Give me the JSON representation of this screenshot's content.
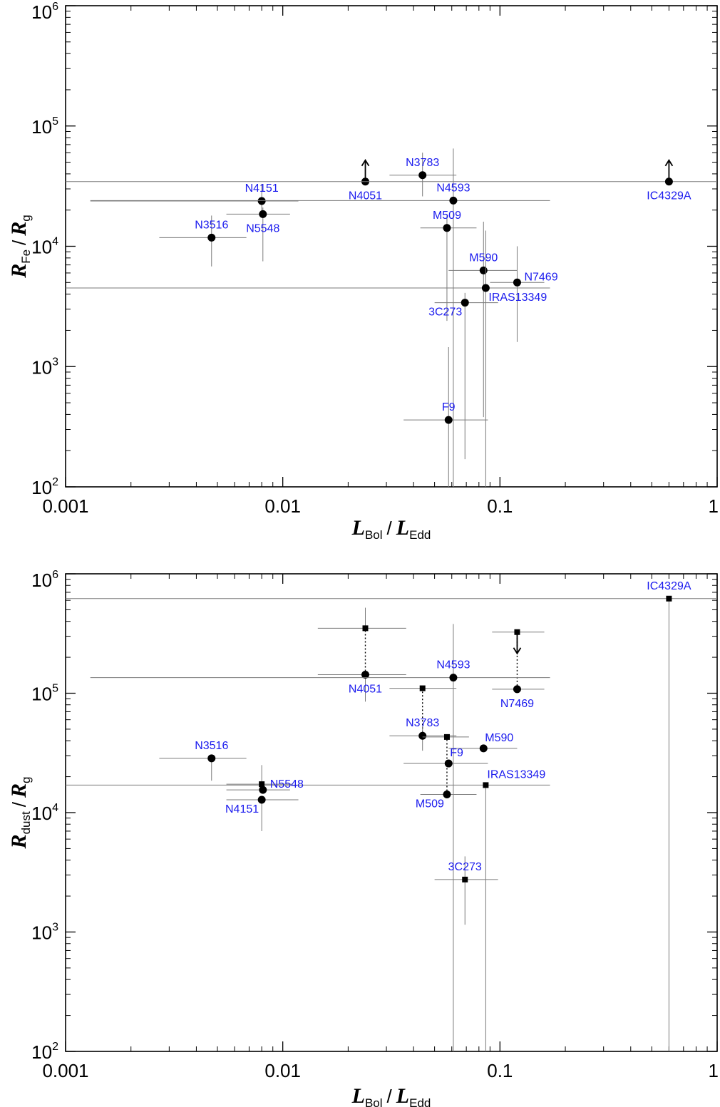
{
  "colors": {
    "label": "#1a1aee",
    "errorbar": "#7a7a7a",
    "axis": "#000000"
  },
  "chart_data": [
    {
      "type": "scatter",
      "panel": "top",
      "xscale": "log",
      "yscale": "log",
      "xlim": [
        0.001,
        1
      ],
      "ylim": [
        100,
        1000000
      ],
      "xlabel": {
        "main": "L",
        "sub": "Bol",
        "slash": "/",
        "main2": "L",
        "sub2": "Edd"
      },
      "ylabel": {
        "main": "R",
        "sub": "Fe",
        "slash": "/",
        "main2": "R",
        "sub2": "g"
      },
      "xticks": [
        {
          "value": 0.001,
          "label": "0.001"
        },
        {
          "value": 0.01,
          "label": "0.01"
        },
        {
          "value": 0.1,
          "label": "0.1"
        },
        {
          "value": 1,
          "label": "1"
        }
      ],
      "yticks": [
        {
          "value": 100,
          "base": "10",
          "exp": "2"
        },
        {
          "value": 1000,
          "base": "10",
          "exp": "3"
        },
        {
          "value": 10000,
          "base": "10",
          "exp": "4"
        },
        {
          "value": 100000,
          "base": "10",
          "exp": "5"
        },
        {
          "value": 1000000,
          "base": "10",
          "exp": "6"
        }
      ],
      "points": [
        {
          "label": "N3516",
          "x": 0.0047,
          "y": 11800,
          "xerr": [
            0.0027,
            0.0068
          ],
          "yerr": [
            6800,
            18000
          ],
          "marker": "circle",
          "lpos": "above"
        },
        {
          "label": "N4151",
          "x": 0.008,
          "y": 23800,
          "xerr": [
            0.0013,
            0.0118
          ],
          "yerr": [
            19000,
            33000
          ],
          "marker": "circle",
          "lpos": "above"
        },
        {
          "label": "N5548",
          "x": 0.0081,
          "y": 18500,
          "xerr": [
            0.0055,
            0.0108
          ],
          "yerr": [
            7500,
            21000
          ],
          "marker": "circle",
          "lpos": "below"
        },
        {
          "label": "N4051",
          "x": 0.024,
          "y": 34500,
          "xerr": [
            0.024,
            0.024
          ],
          "yerr": [
            34500,
            34500
          ],
          "marker": "circle",
          "limit": "lower",
          "lpos": "below"
        },
        {
          "label": "N3783",
          "x": 0.044,
          "y": 39000,
          "xerr": [
            0.031,
            0.063
          ],
          "yerr": [
            26000,
            60000
          ],
          "marker": "circle",
          "lpos": "above"
        },
        {
          "label": "N4593",
          "x": 0.061,
          "y": 24000,
          "xerr": [
            0.0013,
            0.17
          ],
          "yerr": [
            100,
            65000
          ],
          "marker": "circle",
          "lpos": "above"
        },
        {
          "label": "M509",
          "x": 0.057,
          "y": 14200,
          "xerr": [
            0.043,
            0.078
          ],
          "yerr": [
            2400,
            18000
          ],
          "marker": "circle",
          "lpos": "above"
        },
        {
          "label": "M590",
          "x": 0.084,
          "y": 6300,
          "xerr": [
            0.058,
            0.12
          ],
          "yerr": [
            380,
            16000
          ],
          "marker": "circle",
          "lpos": "above"
        },
        {
          "label": "N7469",
          "x": 0.12,
          "y": 5000,
          "xerr": [
            0.09,
            0.16
          ],
          "yerr": [
            1600,
            10000
          ],
          "marker": "circle",
          "lpos": "right"
        },
        {
          "label": "IRAS13349",
          "x": 0.086,
          "y": 4500,
          "xerr": [
            0.001,
            0.17
          ],
          "yerr": [
            100,
            13500
          ],
          "marker": "circle",
          "lpos": "below-right"
        },
        {
          "label": "3C273",
          "x": 0.069,
          "y": 3400,
          "xerr": [
            0.05,
            0.098
          ],
          "yerr": [
            170,
            4100
          ],
          "marker": "circle",
          "lpos": "below-left"
        },
        {
          "label": "F9",
          "x": 0.058,
          "y": 360,
          "xerr": [
            0.036,
            0.088
          ],
          "yerr": [
            100,
            1450
          ],
          "marker": "circle",
          "lpos": "above"
        },
        {
          "label": "IC4329A",
          "x": 0.6,
          "y": 34500,
          "xerr": [
            0.001,
            1
          ],
          "yerr": [
            34500,
            34500
          ],
          "marker": "circle",
          "limit": "lower",
          "lpos": "below"
        }
      ],
      "connectors": []
    },
    {
      "type": "scatter",
      "panel": "bottom",
      "xscale": "log",
      "yscale": "log",
      "xlim": [
        0.001,
        1
      ],
      "ylim": [
        100,
        1000000
      ],
      "xlabel": {
        "main": "L",
        "sub": "Bol",
        "slash": "/",
        "main2": "L",
        "sub2": "Edd"
      },
      "ylabel": {
        "main": "R",
        "sub": "dust",
        "slash": "/",
        "main2": "R",
        "sub2": "g"
      },
      "xticks": [
        {
          "value": 0.001,
          "label": "0.001"
        },
        {
          "value": 0.01,
          "label": "0.01"
        },
        {
          "value": 0.1,
          "label": "0.1"
        },
        {
          "value": 1,
          "label": "1"
        }
      ],
      "yticks": [
        {
          "value": 100,
          "base": "10",
          "exp": "2"
        },
        {
          "value": 1000,
          "base": "10",
          "exp": "3"
        },
        {
          "value": 10000,
          "base": "10",
          "exp": "4"
        },
        {
          "value": 100000,
          "base": "10",
          "exp": "5"
        },
        {
          "value": 1000000,
          "base": "10",
          "exp": "6"
        }
      ],
      "points": [
        {
          "label": "IC4329A",
          "x": 0.6,
          "y": 620000,
          "xerr": [
            0.001,
            1
          ],
          "yerr": [
            100,
            620000
          ],
          "marker": "square",
          "lpos": "above"
        },
        {
          "label": "",
          "x": 0.024,
          "y": 350000,
          "xerr": [
            0.0145,
            0.037
          ],
          "yerr": [
            350000,
            520000
          ],
          "marker": "square"
        },
        {
          "label": "N4051",
          "x": 0.024,
          "y": 143000,
          "xerr": [
            0.0145,
            0.037
          ],
          "yerr": [
            85000,
            143000
          ],
          "marker": "circle",
          "lpos": "below"
        },
        {
          "label": "",
          "x": 0.12,
          "y": 325000,
          "xerr": [
            0.092,
            0.16
          ],
          "yerr": [
            325000,
            325000
          ],
          "marker": "square",
          "limit": "upper"
        },
        {
          "label": "N7469",
          "x": 0.12,
          "y": 108000,
          "xerr": [
            0.092,
            0.16
          ],
          "yerr": [
            108000,
            108000
          ],
          "marker": "circle",
          "lpos": "below"
        },
        {
          "label": "N4593",
          "x": 0.061,
          "y": 135000,
          "xerr": [
            0.0013,
            0.17
          ],
          "yerr": [
            100,
            380000
          ],
          "marker": "circle",
          "lpos": "above"
        },
        {
          "label": "",
          "x": 0.044,
          "y": 110000,
          "xerr": [
            0.031,
            0.063
          ],
          "yerr": [
            110000,
            110000
          ],
          "marker": "square"
        },
        {
          "label": "N3783",
          "x": 0.044,
          "y": 44000,
          "xerr": [
            0.031,
            0.063
          ],
          "yerr": [
            33000,
            53000
          ],
          "marker": "circle",
          "lpos": "above"
        },
        {
          "label": "",
          "x": 0.057,
          "y": 43000,
          "xerr": [
            0.044,
            0.072
          ],
          "yerr": [
            43000,
            43000
          ],
          "marker": "square"
        },
        {
          "label": "M590",
          "x": 0.084,
          "y": 34500,
          "xerr": [
            0.058,
            0.12
          ],
          "yerr": [
            34500,
            34500
          ],
          "marker": "circle",
          "lpos": "above-right"
        },
        {
          "label": "F9",
          "x": 0.058,
          "y": 25800,
          "xerr": [
            0.036,
            0.088
          ],
          "yerr": [
            25800,
            25800
          ],
          "marker": "circle",
          "lpos": "above-right"
        },
        {
          "label": "M509",
          "x": 0.057,
          "y": 14200,
          "xerr": [
            0.043,
            0.078
          ],
          "yerr": [
            14200,
            14200
          ],
          "marker": "circle",
          "lpos": "below-left"
        },
        {
          "label": "IRAS13349",
          "x": 0.086,
          "y": 17000,
          "xerr": [
            0.001,
            0.17
          ],
          "yerr": [
            100,
            17000
          ],
          "marker": "square",
          "lpos": "above-right"
        },
        {
          "label": "N3516",
          "x": 0.0047,
          "y": 28500,
          "xerr": [
            0.0027,
            0.0068
          ],
          "yerr": [
            18500,
            28500
          ],
          "marker": "circle",
          "lpos": "above"
        },
        {
          "label": "",
          "x": 0.008,
          "y": 17300,
          "xerr": [
            0.0055,
            0.011
          ],
          "yerr": [
            17300,
            25000
          ],
          "marker": "square"
        },
        {
          "label": "N5548",
          "x": 0.0081,
          "y": 15500,
          "xerr": [
            0.0055,
            0.0108
          ],
          "yerr": [
            15500,
            15500
          ],
          "marker": "circle",
          "lpos": "right"
        },
        {
          "label": "N4151",
          "x": 0.008,
          "y": 12800,
          "xerr": [
            0.0055,
            0.0118
          ],
          "yerr": [
            7000,
            12800
          ],
          "marker": "circle",
          "lpos": "below-left"
        },
        {
          "label": "3C273",
          "x": 0.069,
          "y": 2750,
          "xerr": [
            0.05,
            0.098
          ],
          "yerr": [
            1150,
            4300
          ],
          "marker": "square",
          "lpos": "above"
        }
      ],
      "connectors": [
        {
          "x": 0.024,
          "y1": 143000,
          "y2": 350000
        },
        {
          "x": 0.12,
          "y1": 108000,
          "y2": 325000
        },
        {
          "x": 0.044,
          "y1": 44000,
          "y2": 110000
        },
        {
          "x": 0.057,
          "y1": 14200,
          "y2": 43000
        }
      ]
    }
  ]
}
